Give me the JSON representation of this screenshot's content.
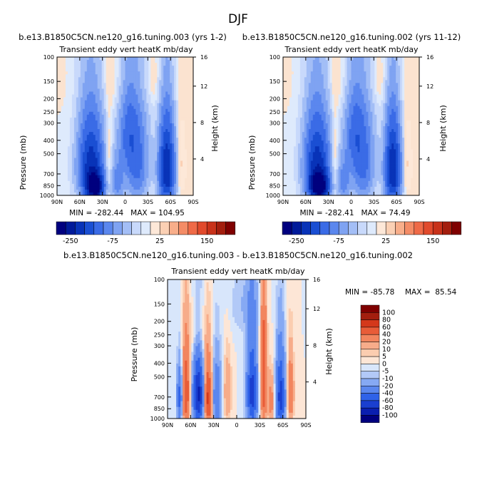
{
  "figure_title": "DJF",
  "colors": {
    "blue": [
      "#00007f",
      "#001a9a",
      "#0833b8",
      "#1a4fd3",
      "#3a6be6",
      "#5b87ee",
      "#7fa3f2",
      "#a3bef6",
      "#c8d9fb",
      "#deeafc"
    ],
    "red": [
      "#fde8d8",
      "#fbd0b4",
      "#f8ae8a",
      "#f48c66",
      "#ef6a47",
      "#e14a2c",
      "#c8321a",
      "#a31e0e",
      "#7f0000"
    ]
  },
  "chart_data": [
    {
      "type": "heatmap",
      "title": "b.e13.B1850C5CN.ne120_g16.tuning.003 (yrs 1-2)",
      "subtitle": "Transient eddy vert heatK mb/day",
      "xlabel": "",
      "ylabel": "Pressure (mb)",
      "y2label": "Height (km)",
      "x_ticks": [
        "90N",
        "60N",
        "30N",
        "0",
        "30S",
        "60S",
        "90S"
      ],
      "x_values": [
        90,
        60,
        30,
        0,
        -30,
        -60,
        -90
      ],
      "y_ticks": [
        "100",
        "150",
        "200",
        "250",
        "300",
        "400",
        "500",
        "700",
        "850",
        "1000"
      ],
      "y_values": [
        100,
        150,
        200,
        250,
        300,
        400,
        500,
        700,
        850,
        1000
      ],
      "y2_ticks": [
        "4",
        "8",
        "12",
        "16"
      ],
      "stats": "MIN = -282.44   MAX = 104.95",
      "colorbar_labels": [
        "-250",
        "-75",
        "25",
        "150"
      ],
      "features": [
        {
          "lat": 40,
          "p": 870,
          "value": -282,
          "wlat": 10,
          "wp": 170
        },
        {
          "lat": 45,
          "p": 620,
          "value": -180,
          "wlat": 16,
          "wp": 400
        },
        {
          "lat": 10,
          "p": 800,
          "value": -60,
          "wlat": 8,
          "wp": 300
        },
        {
          "lat": -3,
          "p": 350,
          "value": -60,
          "wlat": 12,
          "wp": 250
        },
        {
          "lat": -15,
          "p": 560,
          "value": -90,
          "wlat": 15,
          "wp": 450
        },
        {
          "lat": -55,
          "p": 650,
          "value": -200,
          "wlat": 10,
          "wp": 420
        },
        {
          "lat": 22,
          "p": 600,
          "value": 25,
          "wlat": 5,
          "wp": 350
        },
        {
          "lat": -75,
          "p": 600,
          "value": 30,
          "wlat": 5,
          "wp": 300
        },
        {
          "lat": -20,
          "p": 150,
          "value": 10,
          "wlat": 60,
          "wp": 80
        }
      ]
    },
    {
      "type": "heatmap",
      "title": "b.e13.B1850C5CN.ne120_g16.tuning.002 (yrs 11-12)",
      "subtitle": "Transient eddy vert heatK mb/day",
      "xlabel": "",
      "ylabel": "Pressure (mb)",
      "y2label": "Height (km)",
      "x_ticks": [
        "90N",
        "60N",
        "30N",
        "0",
        "30S",
        "60S",
        "90S"
      ],
      "x_values": [
        90,
        60,
        30,
        0,
        -30,
        -60,
        -90
      ],
      "y_ticks": [
        "100",
        "150",
        "200",
        "250",
        "300",
        "400",
        "500",
        "700",
        "850",
        "1000"
      ],
      "y_values": [
        100,
        150,
        200,
        250,
        300,
        400,
        500,
        700,
        850,
        1000
      ],
      "y2_ticks": [
        "4",
        "8",
        "12",
        "16"
      ],
      "stats": "MIN = -282.41   MAX = 74.49",
      "colorbar_labels": [
        "-250",
        "-75",
        "25",
        "150"
      ],
      "features": [
        {
          "lat": 42,
          "p": 870,
          "value": -282,
          "wlat": 11,
          "wp": 170
        },
        {
          "lat": 45,
          "p": 620,
          "value": -180,
          "wlat": 16,
          "wp": 400
        },
        {
          "lat": 10,
          "p": 800,
          "value": -60,
          "wlat": 8,
          "wp": 300
        },
        {
          "lat": -3,
          "p": 350,
          "value": -60,
          "wlat": 12,
          "wp": 250
        },
        {
          "lat": -15,
          "p": 560,
          "value": -90,
          "wlat": 15,
          "wp": 450
        },
        {
          "lat": -55,
          "p": 650,
          "value": -200,
          "wlat": 10,
          "wp": 420
        },
        {
          "lat": 22,
          "p": 600,
          "value": 25,
          "wlat": 5,
          "wp": 350
        },
        {
          "lat": -75,
          "p": 600,
          "value": 30,
          "wlat": 5,
          "wp": 300
        },
        {
          "lat": -20,
          "p": 150,
          "value": 10,
          "wlat": 60,
          "wp": 80
        }
      ]
    },
    {
      "type": "heatmap",
      "title": "b.e13.B1850C5CN.ne120_g16.tuning.003 - b.e13.B1850C5CN.ne120_g16.tuning.002",
      "subtitle": "Transient eddy vert heatK mb/day",
      "xlabel": "",
      "ylabel": "Pressure (mb)",
      "y2label": "Height (km)",
      "x_ticks": [
        "90N",
        "60N",
        "30N",
        "0",
        "30S",
        "60S",
        "90S"
      ],
      "x_values": [
        90,
        60,
        30,
        0,
        -30,
        -60,
        -90
      ],
      "y_ticks": [
        "100",
        "150",
        "200",
        "250",
        "300",
        "400",
        "500",
        "700",
        "850",
        "1000"
      ],
      "y_values": [
        100,
        150,
        200,
        250,
        300,
        400,
        500,
        700,
        850,
        1000
      ],
      "y2_ticks": [
        "4",
        "8",
        "12",
        "16"
      ],
      "stats_min": "MIN = -85.78",
      "stats_max": "MAX =  85.54",
      "colorbar_labels": [
        "100",
        "80",
        "60",
        "40",
        "20",
        "10",
        "5",
        "0",
        "-5",
        "-10",
        "-20",
        "-40",
        "-60",
        "-80",
        "-100"
      ],
      "features": [
        {
          "lat": 74,
          "p": 700,
          "value": -50,
          "wlat": 4,
          "wp": 320
        },
        {
          "lat": 66,
          "p": 650,
          "value": 60,
          "wlat": 5,
          "wp": 420
        },
        {
          "lat": 50,
          "p": 680,
          "value": -85,
          "wlat": 7,
          "wp": 400
        },
        {
          "lat": 37,
          "p": 720,
          "value": 70,
          "wlat": 5,
          "wp": 380
        },
        {
          "lat": 26,
          "p": 700,
          "value": -40,
          "wlat": 6,
          "wp": 380
        },
        {
          "lat": 12,
          "p": 650,
          "value": 20,
          "wlat": 5,
          "wp": 350
        },
        {
          "lat": -20,
          "p": 650,
          "value": -70,
          "wlat": 7,
          "wp": 450
        },
        {
          "lat": -35,
          "p": 500,
          "value": 60,
          "wlat": 4,
          "wp": 500
        },
        {
          "lat": -57,
          "p": 700,
          "value": -70,
          "wlat": 6,
          "wp": 420
        },
        {
          "lat": -45,
          "p": 750,
          "value": 30,
          "wlat": 4,
          "wp": 300
        },
        {
          "lat": -70,
          "p": 650,
          "value": 40,
          "wlat": 4,
          "wp": 350
        },
        {
          "lat": 50,
          "p": 250,
          "value": 15,
          "wlat": 10,
          "wp": 120
        },
        {
          "lat": -10,
          "p": 150,
          "value": -10,
          "wlat": 20,
          "wp": 90
        }
      ]
    }
  ]
}
